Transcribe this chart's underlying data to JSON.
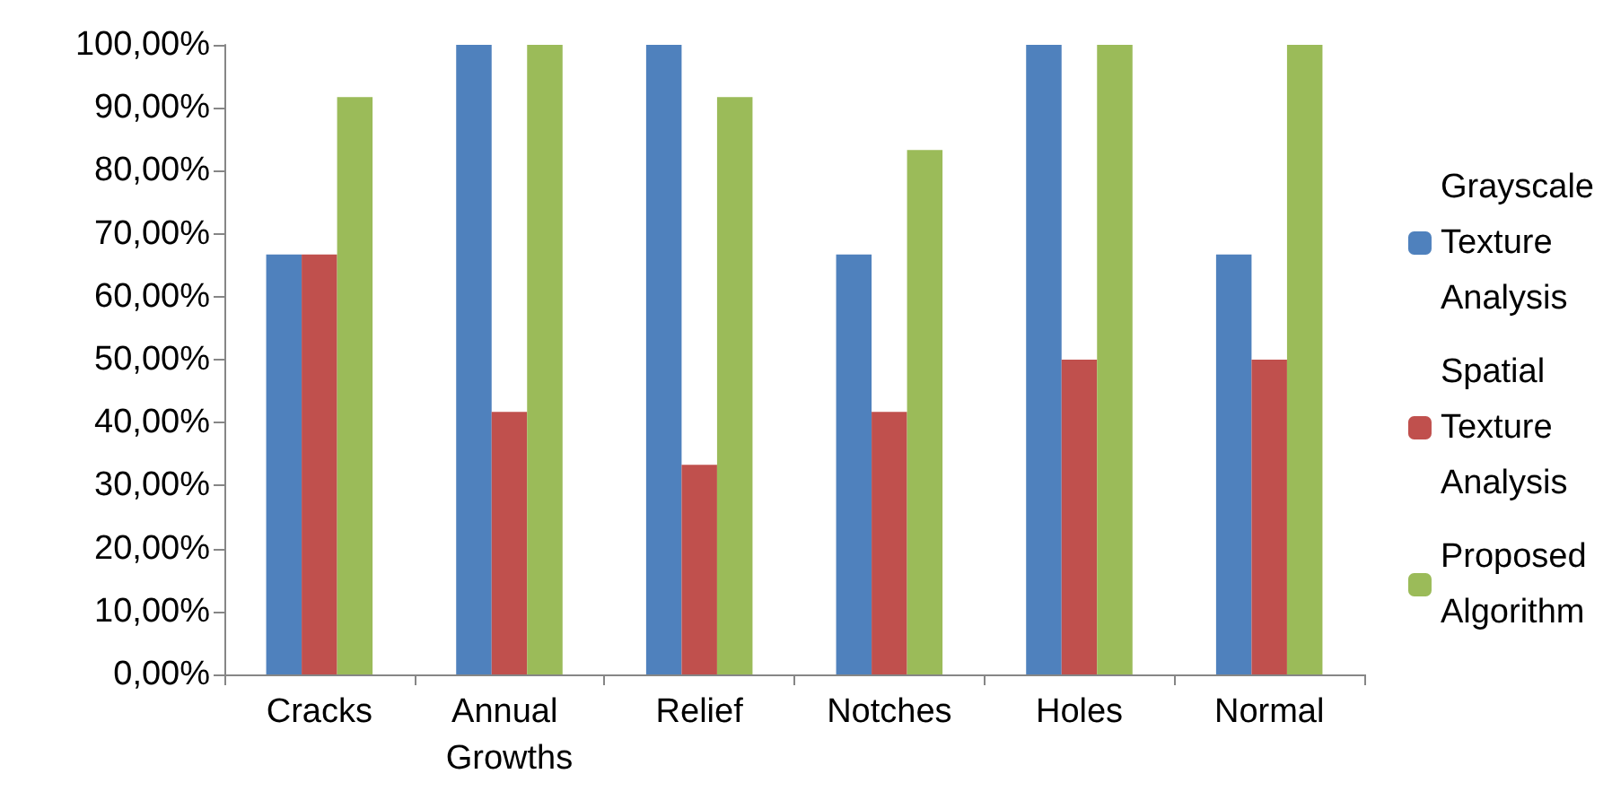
{
  "chart_data": {
    "type": "bar",
    "categories": [
      "Cracks",
      "Annual Growths",
      "Relief",
      "Notches",
      "Holes",
      "Normal"
    ],
    "series": [
      {
        "name": "Grayscale Texture Analysis",
        "color": "#4f81bd",
        "values": [
          66.7,
          100,
          100,
          66.7,
          100,
          66.7
        ]
      },
      {
        "name": "Spatial Texture Analysis",
        "color": "#c0504d",
        "values": [
          66.7,
          41.7,
          33.3,
          41.7,
          50,
          50
        ]
      },
      {
        "name": "Proposed Algorithm",
        "color": "#9bbb59",
        "values": [
          91.7,
          100,
          91.7,
          83.3,
          100,
          100
        ]
      }
    ],
    "ylim": [
      0,
      100
    ],
    "yticks": [
      {
        "value": 0,
        "label": "0,00%"
      },
      {
        "value": 10,
        "label": "10,00%"
      },
      {
        "value": 20,
        "label": "20,00%"
      },
      {
        "value": 30,
        "label": "30,00%"
      },
      {
        "value": 40,
        "label": "40,00%"
      },
      {
        "value": 50,
        "label": "50,00%"
      },
      {
        "value": 60,
        "label": "60,00%"
      },
      {
        "value": 70,
        "label": "70,00%"
      },
      {
        "value": 80,
        "label": "80,00%"
      },
      {
        "value": 90,
        "label": "90,00%"
      },
      {
        "value": 100,
        "label": "100,00%"
      }
    ],
    "grid": false,
    "legend": "right"
  }
}
